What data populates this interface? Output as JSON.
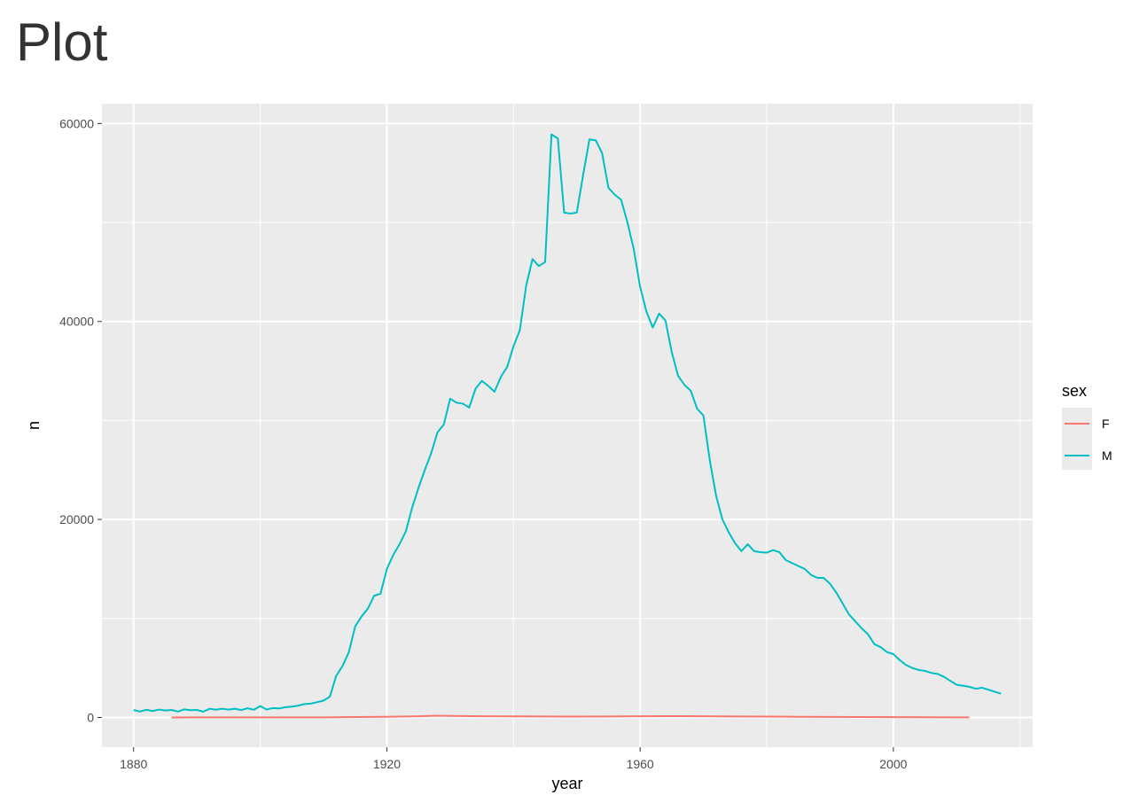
{
  "page": {
    "title": "Plot"
  },
  "chart_data": {
    "type": "line",
    "title": "",
    "xlabel": "year",
    "ylabel": "n",
    "xlim": [
      1875,
      2022
    ],
    "ylim": [
      -3000,
      62000
    ],
    "x_ticks": [
      1880,
      1920,
      1960,
      2000
    ],
    "x_tick_labels": [
      "1880",
      "1920",
      "1960",
      "2000"
    ],
    "y_ticks": [
      0,
      20000,
      40000,
      60000
    ],
    "y_tick_labels": [
      "0",
      "20000",
      "40000",
      "60000"
    ],
    "grid": true,
    "legend": {
      "title": "sex",
      "position": "right"
    },
    "colors": {
      "panel": "#EBEBEB",
      "grid": "#FFFFFF",
      "F": "#F8766D",
      "M": "#00BFC4"
    },
    "series": [
      {
        "name": "F",
        "color": "#F8766D",
        "points": [
          [
            1886,
            5
          ],
          [
            1890,
            8
          ],
          [
            1900,
            10
          ],
          [
            1910,
            15
          ],
          [
            1915,
            40
          ],
          [
            1920,
            70
          ],
          [
            1925,
            120
          ],
          [
            1928,
            180
          ],
          [
            1930,
            160
          ],
          [
            1935,
            120
          ],
          [
            1940,
            110
          ],
          [
            1945,
            100
          ],
          [
            1950,
            90
          ],
          [
            1955,
            100
          ],
          [
            1960,
            120
          ],
          [
            1965,
            130
          ],
          [
            1970,
            120
          ],
          [
            1975,
            100
          ],
          [
            1980,
            90
          ],
          [
            1985,
            70
          ],
          [
            1990,
            50
          ],
          [
            1995,
            40
          ],
          [
            2000,
            30
          ],
          [
            2005,
            20
          ],
          [
            2010,
            15
          ],
          [
            2012,
            10
          ]
        ]
      },
      {
        "name": "M",
        "color": "#00BFC4",
        "points": [
          [
            1880,
            760
          ],
          [
            1881,
            600
          ],
          [
            1882,
            780
          ],
          [
            1883,
            650
          ],
          [
            1884,
            800
          ],
          [
            1885,
            700
          ],
          [
            1886,
            760
          ],
          [
            1887,
            600
          ],
          [
            1888,
            820
          ],
          [
            1889,
            740
          ],
          [
            1890,
            760
          ],
          [
            1891,
            580
          ],
          [
            1892,
            880
          ],
          [
            1893,
            780
          ],
          [
            1894,
            880
          ],
          [
            1895,
            790
          ],
          [
            1896,
            880
          ],
          [
            1897,
            750
          ],
          [
            1898,
            930
          ],
          [
            1899,
            780
          ],
          [
            1900,
            1150
          ],
          [
            1901,
            800
          ],
          [
            1902,
            950
          ],
          [
            1903,
            920
          ],
          [
            1904,
            1040
          ],
          [
            1905,
            1100
          ],
          [
            1906,
            1200
          ],
          [
            1907,
            1350
          ],
          [
            1908,
            1400
          ],
          [
            1909,
            1550
          ],
          [
            1910,
            1700
          ],
          [
            1911,
            2100
          ],
          [
            1912,
            4200
          ],
          [
            1913,
            5200
          ],
          [
            1914,
            6600
          ],
          [
            1915,
            9200
          ],
          [
            1916,
            10200
          ],
          [
            1917,
            11000
          ],
          [
            1918,
            12300
          ],
          [
            1919,
            12500
          ],
          [
            1920,
            15000
          ],
          [
            1921,
            16400
          ],
          [
            1922,
            17500
          ],
          [
            1923,
            18800
          ],
          [
            1924,
            21200
          ],
          [
            1925,
            23200
          ],
          [
            1926,
            25000
          ],
          [
            1927,
            26700
          ],
          [
            1928,
            28800
          ],
          [
            1929,
            29600
          ],
          [
            1930,
            32200
          ],
          [
            1931,
            31800
          ],
          [
            1932,
            31700
          ],
          [
            1933,
            31300
          ],
          [
            1934,
            33200
          ],
          [
            1935,
            34000
          ],
          [
            1936,
            33500
          ],
          [
            1937,
            32900
          ],
          [
            1938,
            34400
          ],
          [
            1939,
            35400
          ],
          [
            1940,
            37500
          ],
          [
            1941,
            39100
          ],
          [
            1942,
            43600
          ],
          [
            1943,
            46300
          ],
          [
            1944,
            45600
          ],
          [
            1945,
            46000
          ],
          [
            1946,
            58900
          ],
          [
            1947,
            58500
          ],
          [
            1948,
            51000
          ],
          [
            1949,
            50900
          ],
          [
            1950,
            51000
          ],
          [
            1951,
            54800
          ],
          [
            1952,
            58400
          ],
          [
            1953,
            58300
          ],
          [
            1954,
            57000
          ],
          [
            1955,
            53500
          ],
          [
            1956,
            52800
          ],
          [
            1957,
            52300
          ],
          [
            1958,
            50000
          ],
          [
            1959,
            47300
          ],
          [
            1960,
            43500
          ],
          [
            1961,
            41000
          ],
          [
            1962,
            39400
          ],
          [
            1963,
            40800
          ],
          [
            1964,
            40100
          ],
          [
            1965,
            36900
          ],
          [
            1966,
            34500
          ],
          [
            1967,
            33600
          ],
          [
            1968,
            33000
          ],
          [
            1969,
            31200
          ],
          [
            1970,
            30500
          ],
          [
            1971,
            26000
          ],
          [
            1972,
            22400
          ],
          [
            1973,
            20000
          ],
          [
            1974,
            18700
          ],
          [
            1975,
            17600
          ],
          [
            1976,
            16800
          ],
          [
            1977,
            17500
          ],
          [
            1978,
            16800
          ],
          [
            1979,
            16700
          ],
          [
            1980,
            16650
          ],
          [
            1981,
            16900
          ],
          [
            1982,
            16700
          ],
          [
            1983,
            15900
          ],
          [
            1984,
            15600
          ],
          [
            1985,
            15300
          ],
          [
            1986,
            15000
          ],
          [
            1987,
            14400
          ],
          [
            1988,
            14100
          ],
          [
            1989,
            14100
          ],
          [
            1990,
            13500
          ],
          [
            1991,
            12600
          ],
          [
            1992,
            11500
          ],
          [
            1993,
            10400
          ],
          [
            1994,
            9700
          ],
          [
            1995,
            9000
          ],
          [
            1996,
            8400
          ],
          [
            1997,
            7400
          ],
          [
            1998,
            7100
          ],
          [
            1999,
            6600
          ],
          [
            2000,
            6400
          ],
          [
            2001,
            5800
          ],
          [
            2002,
            5300
          ],
          [
            2003,
            5000
          ],
          [
            2004,
            4800
          ],
          [
            2005,
            4700
          ],
          [
            2006,
            4500
          ],
          [
            2007,
            4400
          ],
          [
            2008,
            4100
          ],
          [
            2009,
            3700
          ],
          [
            2010,
            3300
          ],
          [
            2011,
            3200
          ],
          [
            2012,
            3100
          ],
          [
            2013,
            2900
          ],
          [
            2014,
            3000
          ],
          [
            2015,
            2800
          ],
          [
            2016,
            2600
          ],
          [
            2017,
            2400
          ]
        ]
      }
    ]
  }
}
